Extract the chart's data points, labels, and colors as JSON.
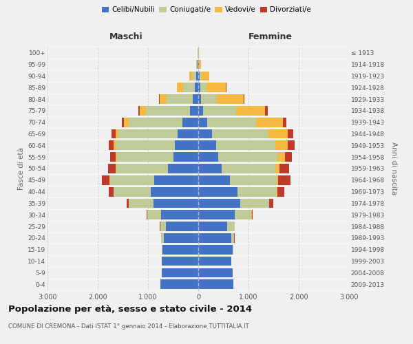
{
  "age_groups": [
    "0-4",
    "5-9",
    "10-14",
    "15-19",
    "20-24",
    "25-29",
    "30-34",
    "35-39",
    "40-44",
    "45-49",
    "50-54",
    "55-59",
    "60-64",
    "65-69",
    "70-74",
    "75-79",
    "80-84",
    "85-89",
    "90-94",
    "95-99",
    "100+"
  ],
  "birth_years": [
    "2009-2013",
    "2004-2008",
    "1999-2003",
    "1994-1998",
    "1989-1993",
    "1984-1988",
    "1979-1983",
    "1974-1978",
    "1969-1973",
    "1964-1968",
    "1959-1963",
    "1954-1958",
    "1949-1953",
    "1944-1948",
    "1939-1943",
    "1934-1938",
    "1929-1933",
    "1924-1928",
    "1919-1923",
    "1914-1918",
    "≤ 1913"
  ],
  "maschi": {
    "celibi": [
      750,
      730,
      720,
      710,
      690,
      640,
      740,
      890,
      940,
      880,
      600,
      490,
      460,
      410,
      310,
      170,
      110,
      70,
      45,
      10,
      5
    ],
    "coniugati": [
      2,
      2,
      4,
      10,
      45,
      115,
      270,
      490,
      740,
      880,
      1030,
      1130,
      1190,
      1180,
      1080,
      870,
      520,
      230,
      75,
      18,
      4
    ],
    "vedovi": [
      0,
      0,
      0,
      0,
      1,
      1,
      2,
      2,
      4,
      8,
      18,
      25,
      35,
      55,
      90,
      120,
      140,
      120,
      55,
      12,
      1
    ],
    "divorziati": [
      0,
      0,
      0,
      0,
      2,
      7,
      18,
      45,
      95,
      145,
      145,
      115,
      95,
      75,
      45,
      28,
      8,
      4,
      2,
      0,
      0
    ]
  },
  "femmine": {
    "nubili": [
      700,
      680,
      660,
      680,
      660,
      580,
      730,
      830,
      780,
      630,
      460,
      400,
      360,
      280,
      180,
      90,
      55,
      40,
      25,
      8,
      4
    ],
    "coniugate": [
      2,
      2,
      4,
      12,
      55,
      140,
      330,
      580,
      780,
      930,
      1080,
      1180,
      1180,
      1120,
      970,
      660,
      320,
      130,
      50,
      12,
      2
    ],
    "vedove": [
      0,
      0,
      0,
      1,
      2,
      2,
      4,
      7,
      13,
      28,
      75,
      140,
      235,
      380,
      530,
      580,
      530,
      380,
      140,
      28,
      4
    ],
    "divorziate": [
      0,
      0,
      0,
      1,
      3,
      8,
      22,
      75,
      145,
      245,
      195,
      145,
      145,
      115,
      75,
      48,
      14,
      7,
      3,
      0,
      0
    ]
  },
  "colors": {
    "celibi": "#4472C4",
    "coniugati": "#BFCC99",
    "vedovi": "#F4B942",
    "divorziati": "#C0392B"
  },
  "xlim": 3000,
  "title": "Popolazione per età, sesso e stato civile - 2014",
  "subtitle": "COMUNE DI CREMONA - Dati ISTAT 1° gennaio 2014 - Elaborazione TUTTITALIA.IT",
  "xlabel_left": "Maschi",
  "xlabel_right": "Femmine",
  "ylabel_left": "Fasce di età",
  "ylabel_right": "Anni di nascita",
  "legend_labels": [
    "Celibi/Nubili",
    "Coniugati/e",
    "Vedovi/e",
    "Divorziati/e"
  ],
  "xtick_labels": [
    "3.000",
    "2.000",
    "1.000",
    "0",
    "1.000",
    "2.000",
    "3.000"
  ],
  "xtick_values": [
    -3000,
    -2000,
    -1000,
    0,
    1000,
    2000,
    3000
  ],
  "background_color": "#f0f0f0",
  "grid_color": "#cccccc"
}
